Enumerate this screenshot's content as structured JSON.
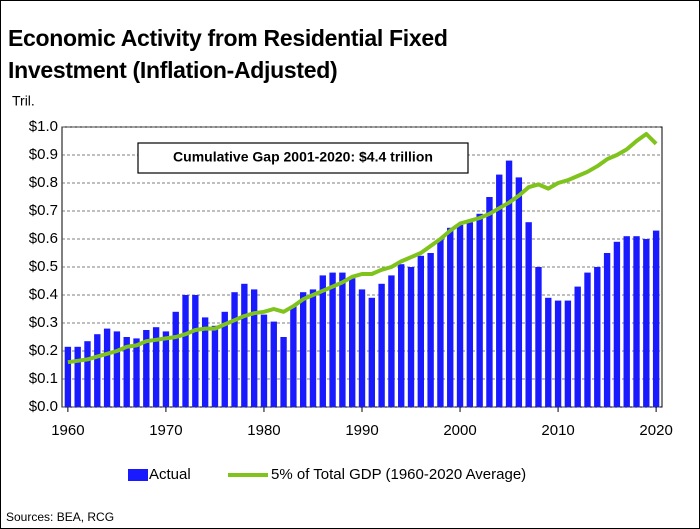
{
  "chart_data": {
    "type": "bar_line",
    "title": "Economic Activity from Residential Fixed Investment (Inflation-Adjusted)",
    "y_label": "Tril.",
    "annotation": "Cumulative Gap 2001-2020: $4.4 trillion",
    "source": "Sources: BEA, RCG",
    "x": [
      1960,
      1961,
      1962,
      1963,
      1964,
      1965,
      1966,
      1967,
      1968,
      1969,
      1970,
      1971,
      1972,
      1973,
      1974,
      1975,
      1976,
      1977,
      1978,
      1979,
      1980,
      1981,
      1982,
      1983,
      1984,
      1985,
      1986,
      1987,
      1988,
      1989,
      1990,
      1991,
      1992,
      1993,
      1994,
      1995,
      1996,
      1997,
      1998,
      1999,
      2000,
      2001,
      2002,
      2003,
      2004,
      2005,
      2006,
      2007,
      2008,
      2009,
      2010,
      2011,
      2012,
      2013,
      2014,
      2015,
      2016,
      2017,
      2018,
      2019,
      2020
    ],
    "series": [
      {
        "name": "Actual",
        "type": "bar",
        "color": "#1a1aff",
        "values": [
          0.215,
          0.215,
          0.235,
          0.26,
          0.28,
          0.27,
          0.25,
          0.245,
          0.275,
          0.285,
          0.27,
          0.34,
          0.4,
          0.4,
          0.32,
          0.29,
          0.34,
          0.41,
          0.44,
          0.42,
          0.33,
          0.305,
          0.25,
          0.36,
          0.41,
          0.42,
          0.47,
          0.48,
          0.48,
          0.46,
          0.42,
          0.39,
          0.44,
          0.47,
          0.51,
          0.5,
          0.54,
          0.55,
          0.6,
          0.64,
          0.65,
          0.66,
          0.69,
          0.75,
          0.83,
          0.88,
          0.82,
          0.66,
          0.5,
          0.39,
          0.38,
          0.38,
          0.43,
          0.48,
          0.5,
          0.55,
          0.59,
          0.61,
          0.61,
          0.6,
          0.63
        ]
      },
      {
        "name": "5% of Total GDP (1960-2020 Average)",
        "type": "line",
        "color": "#7fc31c",
        "values": [
          0.16,
          0.165,
          0.17,
          0.18,
          0.19,
          0.2,
          0.215,
          0.22,
          0.235,
          0.24,
          0.245,
          0.25,
          0.26,
          0.275,
          0.28,
          0.28,
          0.295,
          0.31,
          0.325,
          0.335,
          0.34,
          0.35,
          0.34,
          0.36,
          0.385,
          0.4,
          0.415,
          0.43,
          0.445,
          0.465,
          0.475,
          0.475,
          0.49,
          0.5,
          0.52,
          0.535,
          0.55,
          0.575,
          0.6,
          0.63,
          0.655,
          0.665,
          0.675,
          0.69,
          0.71,
          0.73,
          0.755,
          0.785,
          0.795,
          0.78,
          0.8,
          0.81,
          0.825,
          0.84,
          0.86,
          0.885,
          0.9,
          0.92,
          0.95,
          0.975,
          0.94
        ]
      }
    ],
    "xlim": [
      1959.4,
      2020.6
    ],
    "xticks": [
      1960,
      1970,
      1980,
      1990,
      2000,
      2010,
      2020
    ],
    "ylim": [
      0,
      1
    ],
    "yticks": [
      {
        "value": 0,
        "label": "$0.0"
      },
      {
        "value": 0.1,
        "label": "$0.1"
      },
      {
        "value": 0.2,
        "label": "$0.2"
      },
      {
        "value": 0.3,
        "label": "$0.3"
      },
      {
        "value": 0.4,
        "label": "$0.4"
      },
      {
        "value": 0.5,
        "label": "$0.5"
      },
      {
        "value": 0.6,
        "label": "$0.6"
      },
      {
        "value": 0.7,
        "label": "$0.7"
      },
      {
        "value": 0.8,
        "label": "$0.8"
      },
      {
        "value": 0.9,
        "label": "$0.9"
      },
      {
        "value": 1,
        "label": "$1.0"
      }
    ],
    "grid": true,
    "legend": "bottom"
  }
}
